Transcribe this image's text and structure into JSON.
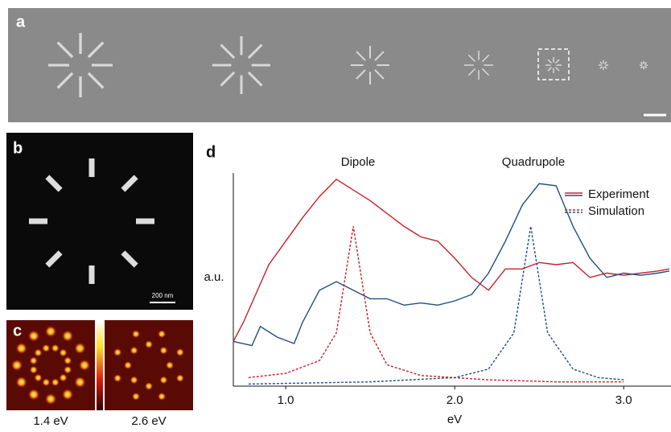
{
  "panels": {
    "a": {
      "label": "a"
    },
    "b": {
      "label": "b",
      "scale_bar": "200 nm"
    },
    "c": {
      "label": "c",
      "images": [
        "1.4 eV",
        "2.6 eV"
      ]
    }
  },
  "chart_data": {
    "type": "line",
    "label": "d",
    "annotations": [
      "Dipole",
      "Quadrupole"
    ],
    "y_label": "a.u.",
    "x_label": "eV",
    "xlim": [
      0.69,
      3.28
    ],
    "ylim": [
      0,
      1
    ],
    "xticks": [
      {
        "value": 1,
        "label": "1.0"
      },
      {
        "value": 2,
        "label": "2.0"
      },
      {
        "value": 3,
        "label": "3.0"
      }
    ],
    "legend_position": "upper right",
    "series": [
      {
        "name": "Experiment",
        "color": "#c8202a",
        "dashed": false,
        "x": [
          0.69,
          0.75,
          0.9,
          1.0,
          1.1,
          1.2,
          1.3,
          1.4,
          1.5,
          1.6,
          1.7,
          1.8,
          1.9,
          2.0,
          2.1,
          2.2,
          2.3,
          2.4,
          2.5,
          2.6,
          2.7,
          2.8,
          2.9,
          3.0,
          3.1,
          3.2,
          3.27
        ],
        "values": [
          0.21,
          0.3,
          0.57,
          0.68,
          0.79,
          0.89,
          0.97,
          0.92,
          0.87,
          0.81,
          0.75,
          0.7,
          0.68,
          0.6,
          0.51,
          0.45,
          0.55,
          0.55,
          0.58,
          0.57,
          0.58,
          0.51,
          0.53,
          0.52,
          0.53,
          0.54,
          0.55
        ]
      },
      {
        "name": "Experiment",
        "color": "#1f4e86",
        "dashed": false,
        "x": [
          0.69,
          0.8,
          0.85,
          0.95,
          1.05,
          1.1,
          1.2,
          1.3,
          1.4,
          1.5,
          1.6,
          1.7,
          1.8,
          1.9,
          2.0,
          2.1,
          2.2,
          2.3,
          2.4,
          2.5,
          2.6,
          2.7,
          2.8,
          2.9,
          3.0,
          3.1,
          3.2,
          3.27
        ],
        "values": [
          0.21,
          0.19,
          0.28,
          0.23,
          0.2,
          0.3,
          0.45,
          0.49,
          0.45,
          0.41,
          0.41,
          0.38,
          0.39,
          0.38,
          0.4,
          0.43,
          0.53,
          0.68,
          0.85,
          0.95,
          0.94,
          0.75,
          0.6,
          0.51,
          0.53,
          0.52,
          0.53,
          0.54
        ]
      },
      {
        "name": "Simulation",
        "color": "#c8202a",
        "dashed": true,
        "x": [
          0.78,
          1.0,
          1.2,
          1.3,
          1.35,
          1.4,
          1.45,
          1.5,
          1.6,
          1.8,
          2.2,
          2.6,
          3.0
        ],
        "values": [
          0.04,
          0.06,
          0.12,
          0.25,
          0.5,
          0.75,
          0.5,
          0.25,
          0.1,
          0.05,
          0.03,
          0.02,
          0.02
        ]
      },
      {
        "name": "Simulation",
        "color": "#1f4e86",
        "dashed": true,
        "x": [
          0.78,
          1.5,
          2.0,
          2.2,
          2.35,
          2.4,
          2.45,
          2.5,
          2.55,
          2.7,
          2.85,
          3.0
        ],
        "values": [
          0.01,
          0.02,
          0.04,
          0.08,
          0.25,
          0.5,
          0.75,
          0.5,
          0.25,
          0.08,
          0.04,
          0.03
        ]
      }
    ]
  }
}
